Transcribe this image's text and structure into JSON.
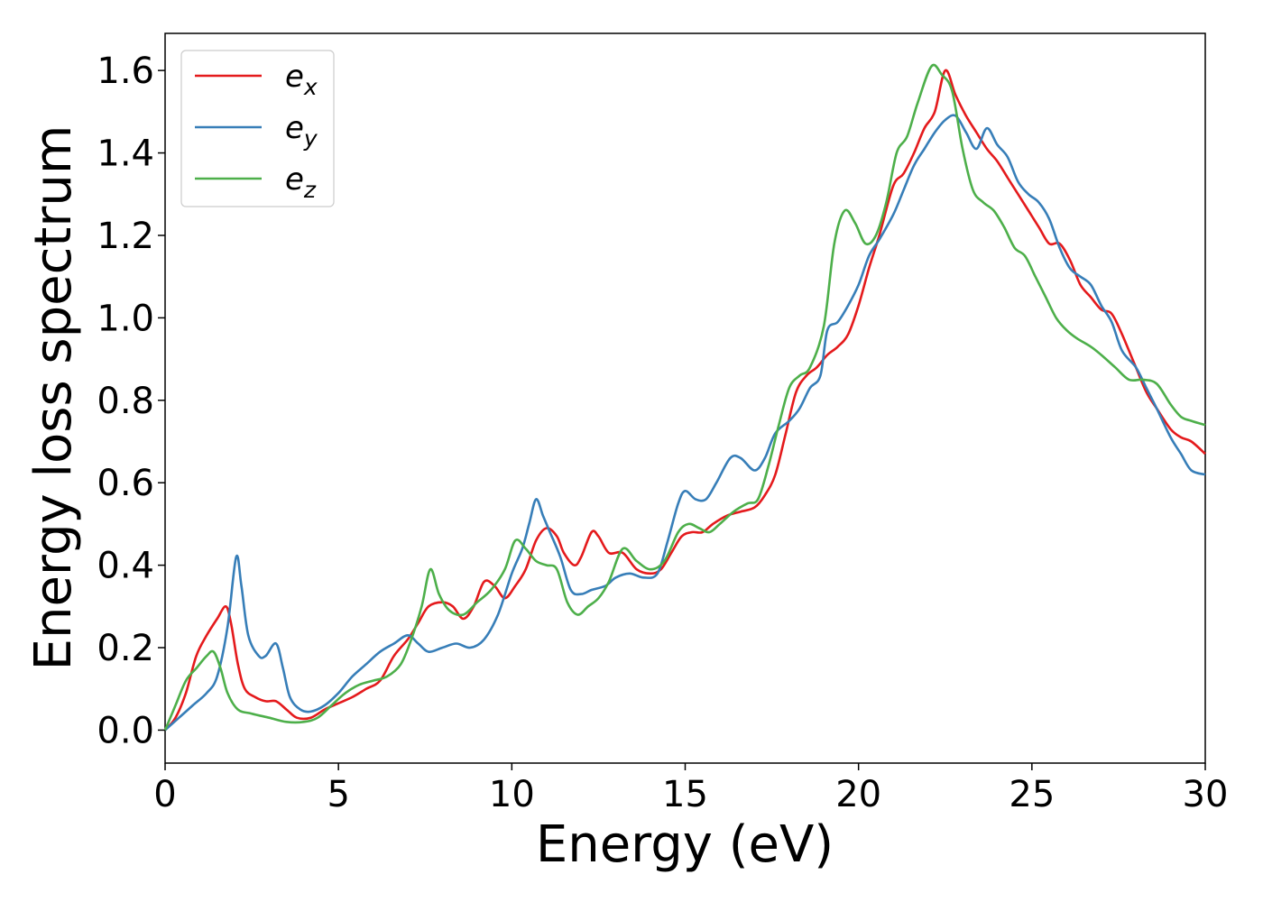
{
  "chart_data": {
    "type": "line",
    "title": "",
    "xlabel": "Energy (eV)",
    "ylabel": "Energy loss spectrum",
    "xlim": [
      0,
      30
    ],
    "ylim": [
      -0.08,
      1.69
    ],
    "xticks": [
      0,
      5,
      10,
      15,
      20,
      25,
      30
    ],
    "yticks": [
      0.0,
      0.2,
      0.4,
      0.6,
      0.8,
      1.0,
      1.2,
      1.4,
      1.6
    ],
    "grid": false,
    "legend_position": "top-left",
    "series": [
      {
        "name": "e_x",
        "label_base": "e",
        "label_sub": "x",
        "color": "#e41a1c",
        "points": [
          [
            0,
            0.0
          ],
          [
            0.3,
            0.03
          ],
          [
            0.6,
            0.09
          ],
          [
            0.9,
            0.18
          ],
          [
            1.2,
            0.23
          ],
          [
            1.5,
            0.27
          ],
          [
            1.75,
            0.3
          ],
          [
            1.9,
            0.26
          ],
          [
            2.1,
            0.16
          ],
          [
            2.3,
            0.1
          ],
          [
            2.6,
            0.08
          ],
          [
            2.9,
            0.07
          ],
          [
            3.2,
            0.07
          ],
          [
            3.5,
            0.05
          ],
          [
            3.8,
            0.03
          ],
          [
            4.2,
            0.03
          ],
          [
            4.6,
            0.05
          ],
          [
            5.0,
            0.065
          ],
          [
            5.4,
            0.08
          ],
          [
            5.8,
            0.1
          ],
          [
            6.2,
            0.12
          ],
          [
            6.6,
            0.18
          ],
          [
            7.0,
            0.22
          ],
          [
            7.3,
            0.26
          ],
          [
            7.6,
            0.3
          ],
          [
            8.0,
            0.31
          ],
          [
            8.3,
            0.3
          ],
          [
            8.6,
            0.27
          ],
          [
            8.9,
            0.3
          ],
          [
            9.2,
            0.36
          ],
          [
            9.5,
            0.35
          ],
          [
            9.8,
            0.32
          ],
          [
            10.1,
            0.35
          ],
          [
            10.4,
            0.39
          ],
          [
            10.7,
            0.46
          ],
          [
            11.0,
            0.49
          ],
          [
            11.3,
            0.47
          ],
          [
            11.5,
            0.43
          ],
          [
            11.8,
            0.4
          ],
          [
            12.0,
            0.42
          ],
          [
            12.3,
            0.48
          ],
          [
            12.5,
            0.47
          ],
          [
            12.8,
            0.43
          ],
          [
            13.2,
            0.43
          ],
          [
            13.6,
            0.39
          ],
          [
            14.0,
            0.38
          ],
          [
            14.3,
            0.39
          ],
          [
            14.6,
            0.43
          ],
          [
            14.9,
            0.47
          ],
          [
            15.2,
            0.48
          ],
          [
            15.5,
            0.48
          ],
          [
            15.8,
            0.5
          ],
          [
            16.2,
            0.52
          ],
          [
            16.6,
            0.53
          ],
          [
            17.0,
            0.54
          ],
          [
            17.3,
            0.57
          ],
          [
            17.6,
            0.62
          ],
          [
            17.9,
            0.72
          ],
          [
            18.2,
            0.82
          ],
          [
            18.5,
            0.86
          ],
          [
            18.8,
            0.88
          ],
          [
            19.1,
            0.91
          ],
          [
            19.4,
            0.93
          ],
          [
            19.7,
            0.96
          ],
          [
            20.0,
            1.03
          ],
          [
            20.3,
            1.12
          ],
          [
            20.6,
            1.2
          ],
          [
            21.0,
            1.32
          ],
          [
            21.3,
            1.35
          ],
          [
            21.6,
            1.4
          ],
          [
            21.9,
            1.46
          ],
          [
            22.2,
            1.5
          ],
          [
            22.5,
            1.6
          ],
          [
            22.8,
            1.54
          ],
          [
            23.1,
            1.49
          ],
          [
            23.4,
            1.45
          ],
          [
            23.7,
            1.41
          ],
          [
            24.0,
            1.38
          ],
          [
            24.3,
            1.34
          ],
          [
            24.6,
            1.3
          ],
          [
            24.9,
            1.26
          ],
          [
            25.2,
            1.22
          ],
          [
            25.5,
            1.18
          ],
          [
            25.8,
            1.18
          ],
          [
            26.1,
            1.14
          ],
          [
            26.4,
            1.08
          ],
          [
            26.7,
            1.05
          ],
          [
            27.0,
            1.02
          ],
          [
            27.3,
            1.01
          ],
          [
            27.6,
            0.96
          ],
          [
            28.0,
            0.88
          ],
          [
            28.3,
            0.82
          ],
          [
            28.6,
            0.78
          ],
          [
            29.0,
            0.73
          ],
          [
            29.3,
            0.71
          ],
          [
            29.6,
            0.7
          ],
          [
            30.0,
            0.67
          ]
        ]
      },
      {
        "name": "e_y",
        "label_base": "e",
        "label_sub": "y",
        "color": "#377eb8",
        "points": [
          [
            0,
            0.0
          ],
          [
            0.4,
            0.03
          ],
          [
            0.8,
            0.06
          ],
          [
            1.2,
            0.09
          ],
          [
            1.5,
            0.13
          ],
          [
            1.8,
            0.25
          ],
          [
            2.05,
            0.42
          ],
          [
            2.2,
            0.35
          ],
          [
            2.4,
            0.23
          ],
          [
            2.7,
            0.18
          ],
          [
            2.9,
            0.18
          ],
          [
            3.2,
            0.21
          ],
          [
            3.4,
            0.15
          ],
          [
            3.6,
            0.08
          ],
          [
            3.9,
            0.05
          ],
          [
            4.2,
            0.045
          ],
          [
            4.6,
            0.06
          ],
          [
            5.0,
            0.09
          ],
          [
            5.4,
            0.13
          ],
          [
            5.8,
            0.16
          ],
          [
            6.2,
            0.19
          ],
          [
            6.6,
            0.21
          ],
          [
            7.0,
            0.23
          ],
          [
            7.3,
            0.21
          ],
          [
            7.6,
            0.19
          ],
          [
            8.0,
            0.2
          ],
          [
            8.4,
            0.21
          ],
          [
            8.8,
            0.2
          ],
          [
            9.2,
            0.22
          ],
          [
            9.6,
            0.28
          ],
          [
            10.0,
            0.38
          ],
          [
            10.3,
            0.44
          ],
          [
            10.5,
            0.5
          ],
          [
            10.7,
            0.56
          ],
          [
            10.9,
            0.52
          ],
          [
            11.1,
            0.48
          ],
          [
            11.4,
            0.42
          ],
          [
            11.7,
            0.34
          ],
          [
            12.0,
            0.33
          ],
          [
            12.3,
            0.34
          ],
          [
            12.7,
            0.35
          ],
          [
            13.0,
            0.37
          ],
          [
            13.4,
            0.38
          ],
          [
            13.8,
            0.37
          ],
          [
            14.2,
            0.38
          ],
          [
            14.5,
            0.46
          ],
          [
            14.8,
            0.55
          ],
          [
            15.0,
            0.58
          ],
          [
            15.3,
            0.56
          ],
          [
            15.6,
            0.56
          ],
          [
            15.9,
            0.6
          ],
          [
            16.3,
            0.66
          ],
          [
            16.6,
            0.66
          ],
          [
            17.0,
            0.63
          ],
          [
            17.3,
            0.66
          ],
          [
            17.6,
            0.72
          ],
          [
            18.0,
            0.75
          ],
          [
            18.3,
            0.78
          ],
          [
            18.6,
            0.83
          ],
          [
            18.9,
            0.86
          ],
          [
            19.1,
            0.97
          ],
          [
            19.4,
            0.99
          ],
          [
            19.7,
            1.03
          ],
          [
            20.0,
            1.08
          ],
          [
            20.3,
            1.15
          ],
          [
            20.6,
            1.19
          ],
          [
            21.0,
            1.25
          ],
          [
            21.3,
            1.31
          ],
          [
            21.6,
            1.37
          ],
          [
            21.9,
            1.41
          ],
          [
            22.2,
            1.45
          ],
          [
            22.5,
            1.48
          ],
          [
            22.8,
            1.49
          ],
          [
            23.1,
            1.45
          ],
          [
            23.4,
            1.41
          ],
          [
            23.7,
            1.46
          ],
          [
            24.0,
            1.42
          ],
          [
            24.3,
            1.39
          ],
          [
            24.6,
            1.33
          ],
          [
            24.9,
            1.3
          ],
          [
            25.2,
            1.28
          ],
          [
            25.5,
            1.24
          ],
          [
            25.8,
            1.17
          ],
          [
            26.1,
            1.12
          ],
          [
            26.4,
            1.1
          ],
          [
            26.7,
            1.08
          ],
          [
            27.0,
            1.03
          ],
          [
            27.3,
            0.99
          ],
          [
            27.6,
            0.92
          ],
          [
            28.0,
            0.88
          ],
          [
            28.3,
            0.83
          ],
          [
            28.6,
            0.78
          ],
          [
            29.0,
            0.71
          ],
          [
            29.3,
            0.67
          ],
          [
            29.6,
            0.63
          ],
          [
            30.0,
            0.62
          ]
        ]
      },
      {
        "name": "e_z",
        "label_base": "e",
        "label_sub": "z",
        "color": "#4daf4a",
        "points": [
          [
            0,
            0.0
          ],
          [
            0.3,
            0.06
          ],
          [
            0.6,
            0.12
          ],
          [
            0.9,
            0.15
          ],
          [
            1.2,
            0.18
          ],
          [
            1.4,
            0.19
          ],
          [
            1.6,
            0.15
          ],
          [
            1.8,
            0.09
          ],
          [
            2.1,
            0.05
          ],
          [
            2.5,
            0.04
          ],
          [
            3.0,
            0.03
          ],
          [
            3.5,
            0.02
          ],
          [
            4.0,
            0.02
          ],
          [
            4.4,
            0.03
          ],
          [
            4.8,
            0.06
          ],
          [
            5.2,
            0.09
          ],
          [
            5.6,
            0.11
          ],
          [
            6.0,
            0.12
          ],
          [
            6.4,
            0.13
          ],
          [
            6.8,
            0.16
          ],
          [
            7.1,
            0.22
          ],
          [
            7.4,
            0.3
          ],
          [
            7.65,
            0.39
          ],
          [
            7.9,
            0.33
          ],
          [
            8.2,
            0.29
          ],
          [
            8.6,
            0.28
          ],
          [
            9.0,
            0.31
          ],
          [
            9.4,
            0.34
          ],
          [
            9.8,
            0.39
          ],
          [
            10.1,
            0.46
          ],
          [
            10.4,
            0.44
          ],
          [
            10.7,
            0.41
          ],
          [
            11.0,
            0.4
          ],
          [
            11.3,
            0.39
          ],
          [
            11.6,
            0.31
          ],
          [
            11.9,
            0.28
          ],
          [
            12.2,
            0.3
          ],
          [
            12.5,
            0.32
          ],
          [
            12.8,
            0.36
          ],
          [
            13.2,
            0.44
          ],
          [
            13.6,
            0.41
          ],
          [
            14.0,
            0.39
          ],
          [
            14.4,
            0.41
          ],
          [
            14.8,
            0.48
          ],
          [
            15.1,
            0.5
          ],
          [
            15.4,
            0.49
          ],
          [
            15.7,
            0.48
          ],
          [
            16.0,
            0.5
          ],
          [
            16.4,
            0.53
          ],
          [
            16.8,
            0.55
          ],
          [
            17.1,
            0.56
          ],
          [
            17.4,
            0.64
          ],
          [
            17.7,
            0.74
          ],
          [
            18.0,
            0.83
          ],
          [
            18.3,
            0.86
          ],
          [
            18.6,
            0.88
          ],
          [
            19.0,
            0.98
          ],
          [
            19.3,
            1.18
          ],
          [
            19.6,
            1.26
          ],
          [
            19.9,
            1.23
          ],
          [
            20.2,
            1.18
          ],
          [
            20.5,
            1.2
          ],
          [
            20.8,
            1.28
          ],
          [
            21.1,
            1.4
          ],
          [
            21.4,
            1.44
          ],
          [
            21.7,
            1.52
          ],
          [
            22.1,
            1.61
          ],
          [
            22.4,
            1.59
          ],
          [
            22.7,
            1.55
          ],
          [
            23.0,
            1.41
          ],
          [
            23.3,
            1.31
          ],
          [
            23.6,
            1.28
          ],
          [
            23.9,
            1.26
          ],
          [
            24.2,
            1.22
          ],
          [
            24.5,
            1.17
          ],
          [
            24.8,
            1.15
          ],
          [
            25.1,
            1.1
          ],
          [
            25.4,
            1.05
          ],
          [
            25.7,
            1.0
          ],
          [
            26.0,
            0.97
          ],
          [
            26.3,
            0.95
          ],
          [
            26.7,
            0.93
          ],
          [
            27.0,
            0.91
          ],
          [
            27.4,
            0.88
          ],
          [
            27.8,
            0.85
          ],
          [
            28.2,
            0.85
          ],
          [
            28.6,
            0.84
          ],
          [
            29.0,
            0.79
          ],
          [
            29.3,
            0.76
          ],
          [
            29.6,
            0.75
          ],
          [
            30.0,
            0.74
          ]
        ]
      }
    ]
  }
}
